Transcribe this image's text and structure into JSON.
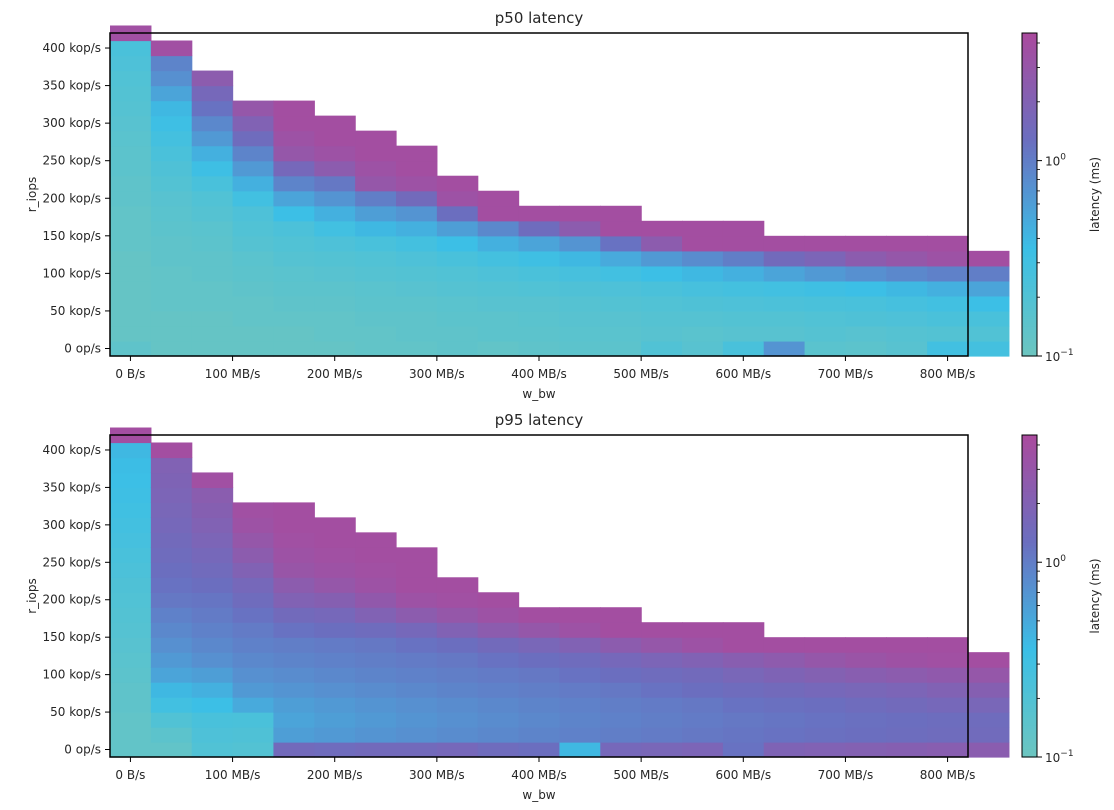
{
  "chart_data": [
    {
      "type": "heatmap",
      "title": "p50 latency",
      "xlabel": "w_bw",
      "ylabel": "r_iops",
      "colorbar_label": "latency (ms)",
      "x_ticks": [
        "0 B/s",
        "100 MB/s",
        "200 MB/s",
        "300 MB/s",
        "400 MB/s",
        "500 MB/s",
        "600 MB/s",
        "700 MB/s",
        "800 MB/s"
      ],
      "y_ticks": [
        "0 op/s",
        "50 kop/s",
        "100 kop/s",
        "150 kop/s",
        "200 kop/s",
        "250 kop/s",
        "300 kop/s",
        "350 kop/s",
        "400 kop/s"
      ],
      "colorbar_ticks": [
        "10",
        "10"
      ],
      "colorbar_exps": [
        "-1",
        "0"
      ],
      "scale": "log",
      "vmin": 0.1,
      "vmax": 4.5,
      "xlim": [
        -20,
        820
      ],
      "ylim": [
        -10,
        420
      ],
      "x_start": -20,
      "x_step": 40,
      "y_start": -10,
      "y_step": 20,
      "cmap": [
        "#6cc5c0",
        "#3bbfe6",
        "#6a6fc0",
        "#a94b9e"
      ],
      "columns": [
        [
          0.14,
          0.12,
          0.12,
          0.12,
          0.12,
          0.12,
          0.12,
          0.13,
          0.13,
          0.13,
          0.14,
          0.14,
          0.15,
          0.15,
          0.16,
          0.17,
          0.18,
          0.19,
          0.2,
          0.22,
          0.24,
          3.8
        ],
        [
          0.12,
          0.12,
          0.12,
          0.13,
          0.13,
          0.13,
          0.14,
          0.14,
          0.15,
          0.16,
          0.17,
          0.19,
          0.21,
          0.24,
          0.28,
          0.33,
          0.4,
          0.55,
          0.75,
          0.9,
          3.8
        ],
        [
          0.12,
          0.12,
          0.12,
          0.13,
          0.13,
          0.14,
          0.14,
          0.15,
          0.16,
          0.18,
          0.2,
          0.25,
          0.33,
          0.45,
          0.65,
          0.85,
          1.2,
          1.6,
          2.5
        ],
        [
          0.12,
          0.12,
          0.13,
          0.13,
          0.14,
          0.15,
          0.16,
          0.18,
          0.2,
          0.22,
          0.3,
          0.45,
          0.65,
          0.9,
          1.4,
          2.0,
          3.0
        ],
        [
          0.12,
          0.12,
          0.13,
          0.14,
          0.15,
          0.16,
          0.18,
          0.2,
          0.23,
          0.35,
          0.55,
          0.9,
          1.6,
          3.0,
          3.5,
          4.0,
          4.0
        ],
        [
          0.12,
          0.13,
          0.13,
          0.14,
          0.15,
          0.17,
          0.19,
          0.22,
          0.3,
          0.45,
          0.7,
          1.1,
          2.5,
          3.5,
          4.0,
          4.0
        ],
        [
          0.13,
          0.13,
          0.14,
          0.15,
          0.16,
          0.18,
          0.2,
          0.25,
          0.4,
          0.6,
          1.0,
          3.0,
          3.5,
          4.0,
          4.0
        ],
        [
          0.13,
          0.14,
          0.14,
          0.15,
          0.17,
          0.19,
          0.22,
          0.28,
          0.45,
          0.7,
          1.5,
          3.5,
          4.0,
          4.0
        ],
        [
          0.14,
          0.14,
          0.15,
          0.16,
          0.18,
          0.2,
          0.25,
          0.35,
          0.6,
          1.3,
          3.5,
          4.0
        ],
        [
          0.13,
          0.15,
          0.15,
          0.17,
          0.19,
          0.22,
          0.28,
          0.45,
          0.85,
          4.0,
          4.0
        ],
        [
          0.14,
          0.15,
          0.16,
          0.17,
          0.2,
          0.24,
          0.32,
          0.55,
          1.4,
          4.0
        ],
        [
          0.15,
          0.16,
          0.17,
          0.18,
          0.21,
          0.26,
          0.4,
          0.7,
          2.5,
          4.0
        ],
        [
          0.15,
          0.16,
          0.17,
          0.19,
          0.22,
          0.3,
          0.5,
          1.2,
          4.0,
          4.0
        ],
        [
          0.2,
          0.17,
          0.18,
          0.2,
          0.24,
          0.35,
          0.65,
          2.5,
          4.0
        ],
        [
          0.17,
          0.16,
          0.18,
          0.21,
          0.26,
          0.4,
          0.8,
          4.0,
          4.0
        ],
        [
          0.25,
          0.17,
          0.19,
          0.22,
          0.28,
          0.45,
          1.0,
          4.0,
          4.0
        ],
        [
          0.7,
          0.17,
          0.19,
          0.23,
          0.3,
          0.55,
          1.5,
          4.0
        ],
        [
          0.16,
          0.18,
          0.2,
          0.24,
          0.32,
          0.65,
          1.8,
          4.0
        ],
        [
          0.15,
          0.17,
          0.21,
          0.25,
          0.35,
          0.75,
          2.5,
          4.0
        ],
        [
          0.17,
          0.18,
          0.22,
          0.27,
          0.4,
          0.85,
          3.0,
          4.0
        ],
        [
          0.3,
          0.19,
          0.24,
          0.3,
          0.45,
          0.95,
          3.5,
          4.0
        ],
        [
          0.28,
          0.2,
          0.25,
          0.35,
          0.55,
          1.0,
          4.0
        ]
      ]
    },
    {
      "type": "heatmap",
      "title": "p95 latency",
      "xlabel": "w_bw",
      "ylabel": "r_iops",
      "colorbar_label": "latency (ms)",
      "x_ticks": [
        "0 B/s",
        "100 MB/s",
        "200 MB/s",
        "300 MB/s",
        "400 MB/s",
        "500 MB/s",
        "600 MB/s",
        "700 MB/s",
        "800 MB/s"
      ],
      "y_ticks": [
        "0 op/s",
        "50 kop/s",
        "100 kop/s",
        "150 kop/s",
        "200 kop/s",
        "250 kop/s",
        "300 kop/s",
        "350 kop/s",
        "400 kop/s"
      ],
      "colorbar_ticks": [
        "10",
        "10"
      ],
      "colorbar_exps": [
        "-1",
        "0"
      ],
      "scale": "log",
      "vmin": 0.1,
      "vmax": 4.5,
      "xlim": [
        -20,
        820
      ],
      "ylim": [
        -10,
        420
      ],
      "x_start": -20,
      "x_step": 40,
      "y_start": -10,
      "y_step": 20,
      "cmap": [
        "#6cc5c0",
        "#3bbfe6",
        "#6a6fc0",
        "#a94b9e"
      ],
      "columns": [
        [
          0.13,
          0.13,
          0.13,
          0.14,
          0.14,
          0.15,
          0.16,
          0.17,
          0.18,
          0.19,
          0.2,
          0.21,
          0.23,
          0.25,
          0.27,
          0.29,
          0.31,
          0.33,
          0.35,
          0.37,
          0.4,
          4.0
        ],
        [
          0.13,
          0.15,
          0.2,
          0.3,
          0.4,
          0.55,
          0.65,
          0.75,
          0.85,
          0.95,
          1.1,
          1.2,
          1.3,
          1.4,
          1.5,
          1.6,
          1.7,
          1.8,
          1.9,
          2.0,
          4.0
        ],
        [
          0.2,
          0.22,
          0.25,
          0.35,
          0.45,
          0.6,
          0.75,
          0.85,
          0.95,
          1.05,
          1.15,
          1.3,
          1.45,
          1.6,
          1.8,
          2.0,
          2.2,
          2.4,
          3.8
        ],
        [
          0.19,
          0.21,
          0.24,
          0.5,
          0.65,
          0.75,
          0.85,
          0.95,
          1.05,
          1.2,
          1.4,
          1.6,
          2.0,
          2.5,
          3.0,
          3.5,
          3.8
        ],
        [
          1.5,
          0.6,
          0.55,
          0.6,
          0.7,
          0.8,
          0.9,
          1.0,
          1.2,
          1.5,
          2.0,
          2.5,
          3.2,
          3.5,
          3.8,
          4.0,
          4.0
        ],
        [
          1.4,
          0.65,
          0.6,
          0.65,
          0.75,
          0.85,
          0.95,
          1.05,
          1.3,
          1.6,
          2.2,
          3.0,
          3.5,
          3.8,
          4.0,
          4.0
        ],
        [
          1.5,
          0.7,
          0.65,
          0.7,
          0.8,
          0.9,
          1.0,
          1.1,
          1.4,
          2.0,
          2.8,
          3.5,
          3.8,
          4.0,
          4.0
        ],
        [
          1.5,
          0.75,
          0.7,
          0.75,
          0.85,
          0.95,
          1.05,
          1.2,
          1.6,
          2.5,
          3.5,
          4.0,
          4.0,
          4.0
        ],
        [
          1.6,
          0.8,
          0.75,
          0.8,
          0.9,
          1.0,
          1.1,
          1.3,
          2.0,
          3.0,
          3.8,
          4.0
        ],
        [
          1.4,
          0.85,
          0.8,
          0.85,
          0.95,
          1.05,
          1.2,
          1.5,
          2.5,
          3.5,
          4.0
        ],
        [
          1.3,
          0.9,
          0.85,
          0.9,
          1.0,
          1.1,
          1.3,
          1.7,
          3.0,
          4.0
        ],
        [
          0.4,
          0.95,
          0.9,
          0.95,
          1.05,
          1.2,
          1.4,
          2.0,
          3.5,
          4.0
        ],
        [
          1.6,
          1.0,
          0.95,
          1.0,
          1.1,
          1.3,
          1.6,
          2.5,
          4.0,
          4.0
        ],
        [
          1.7,
          1.05,
          1.0,
          1.05,
          1.2,
          1.4,
          1.8,
          3.0,
          4.0
        ],
        [
          1.8,
          1.1,
          1.05,
          1.1,
          1.3,
          1.5,
          2.0,
          3.5,
          4.0
        ],
        [
          1.2,
          1.15,
          1.1,
          1.2,
          1.4,
          1.7,
          2.3,
          4.0,
          4.0
        ],
        [
          1.9,
          1.2,
          1.15,
          1.25,
          1.5,
          1.9,
          2.6,
          4.0
        ],
        [
          2.0,
          1.25,
          1.2,
          1.3,
          1.6,
          2.1,
          3.0,
          4.0
        ],
        [
          2.1,
          1.3,
          1.25,
          1.4,
          1.7,
          2.3,
          3.3,
          4.0
        ],
        [
          2.2,
          1.35,
          1.3,
          1.5,
          1.8,
          2.5,
          3.6,
          4.0
        ],
        [
          2.3,
          1.4,
          1.35,
          1.6,
          2.0,
          2.7,
          3.8,
          4.0
        ],
        [
          2.4,
          1.45,
          1.4,
          1.7,
          2.2,
          3.0,
          4.0
        ]
      ]
    }
  ]
}
